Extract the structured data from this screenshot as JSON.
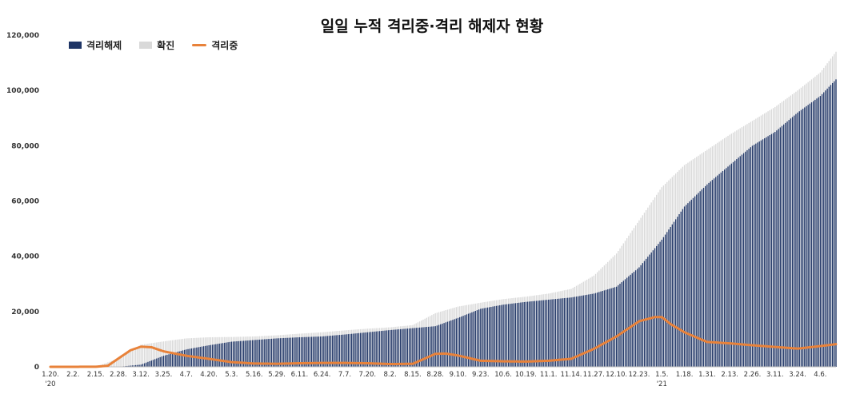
{
  "chart_data": {
    "type": "bar",
    "title": "일일 누적 격리중·격리 해제자 현황",
    "legend_position": "top-left",
    "grid": false,
    "ylim": [
      0,
      120000
    ],
    "yticks": [
      0,
      20000,
      40000,
      60000,
      80000,
      100000,
      120000
    ],
    "ytick_labels": [
      "0",
      "20,000",
      "40,000",
      "60,000",
      "80,000",
      "100,000",
      "120,000"
    ],
    "x_start_date": "2020-01-20",
    "x_end_date": "2021-04-15",
    "x_tick_labels": [
      "1.20.",
      "2.2.",
      "2.15.",
      "2.28.",
      "3.12.",
      "3.25.",
      "4.7.",
      "4.20.",
      "5.3.",
      "5.16.",
      "5.29.",
      "6.11.",
      "6.24.",
      "7.7.",
      "7.20.",
      "8.2.",
      "8.15.",
      "8.28.",
      "9.10.",
      "9.23.",
      "10.6.",
      "10.19.",
      "11.1.",
      "11.14.",
      "11.27.",
      "12.10.",
      "12.23.",
      "1.5.",
      "1.18.",
      "1.31.",
      "2.13.",
      "2.26.",
      "3.11.",
      "3.24.",
      "4.6."
    ],
    "x_year_labels": [
      {
        "at": "1.20.",
        "label": "'20"
      },
      {
        "at": "1.5.",
        "label": "'21"
      }
    ],
    "colors": {
      "released": "#1F3566",
      "confirmed": "#D9D9D9",
      "isolated": "#E8823A"
    },
    "series": [
      {
        "name": "격리해제",
        "kind": "bar",
        "points": [
          [
            "2020-01-20",
            0
          ],
          [
            "2020-02-28",
            0
          ],
          [
            "2020-03-12",
            800
          ],
          [
            "2020-03-25",
            4000
          ],
          [
            "2020-04-07",
            6300
          ],
          [
            "2020-04-20",
            7800
          ],
          [
            "2020-05-03",
            9100
          ],
          [
            "2020-05-16",
            9700
          ],
          [
            "2020-05-29",
            10300
          ],
          [
            "2020-06-11",
            10700
          ],
          [
            "2020-06-24",
            11000
          ],
          [
            "2020-07-07",
            11700
          ],
          [
            "2020-07-20",
            12500
          ],
          [
            "2020-08-02",
            13300
          ],
          [
            "2020-08-15",
            14000
          ],
          [
            "2020-08-28",
            14700
          ],
          [
            "2020-09-10",
            17700
          ],
          [
            "2020-09-23",
            21000
          ],
          [
            "2020-10-06",
            22500
          ],
          [
            "2020-10-19",
            23500
          ],
          [
            "2020-11-01",
            24300
          ],
          [
            "2020-11-14",
            25100
          ],
          [
            "2020-11-27",
            26500
          ],
          [
            "2020-12-10",
            29000
          ],
          [
            "2020-12-23",
            36000
          ],
          [
            "2021-01-05",
            46000
          ],
          [
            "2021-01-18",
            58000
          ],
          [
            "2021-01-31",
            66000
          ],
          [
            "2021-02-13",
            73000
          ],
          [
            "2021-02-26",
            80000
          ],
          [
            "2021-03-11",
            85000
          ],
          [
            "2021-03-24",
            92000
          ],
          [
            "2021-04-06",
            98000
          ],
          [
            "2021-04-15",
            104000
          ]
        ]
      },
      {
        "name": "확진",
        "kind": "bar",
        "points": [
          [
            "2020-01-20",
            0
          ],
          [
            "2020-02-15",
            30
          ],
          [
            "2020-02-28",
            3000
          ],
          [
            "2020-03-12",
            8000
          ],
          [
            "2020-03-25",
            9200
          ],
          [
            "2020-04-07",
            10300
          ],
          [
            "2020-04-20",
            10700
          ],
          [
            "2020-05-03",
            10800
          ],
          [
            "2020-05-16",
            11000
          ],
          [
            "2020-05-29",
            11400
          ],
          [
            "2020-06-11",
            12000
          ],
          [
            "2020-06-24",
            12500
          ],
          [
            "2020-07-07",
            13200
          ],
          [
            "2020-07-20",
            13800
          ],
          [
            "2020-08-02",
            14300
          ],
          [
            "2020-08-15",
            15100
          ],
          [
            "2020-08-28",
            19400
          ],
          [
            "2020-09-10",
            21800
          ],
          [
            "2020-09-23",
            23200
          ],
          [
            "2020-10-06",
            24500
          ],
          [
            "2020-10-19",
            25400
          ],
          [
            "2020-11-01",
            26500
          ],
          [
            "2020-11-14",
            28200
          ],
          [
            "2020-11-27",
            33000
          ],
          [
            "2020-12-10",
            41000
          ],
          [
            "2020-12-23",
            53000
          ],
          [
            "2021-01-05",
            65000
          ],
          [
            "2021-01-18",
            73000
          ],
          [
            "2021-01-31",
            78500
          ],
          [
            "2021-02-13",
            84000
          ],
          [
            "2021-02-26",
            89000
          ],
          [
            "2021-03-11",
            94000
          ],
          [
            "2021-03-24",
            100000
          ],
          [
            "2021-04-06",
            106500
          ],
          [
            "2021-04-15",
            114000
          ]
        ]
      },
      {
        "name": "격리중",
        "kind": "line",
        "points": [
          [
            "2020-01-20",
            0
          ],
          [
            "2020-02-15",
            30
          ],
          [
            "2020-02-22",
            400
          ],
          [
            "2020-02-28",
            3000
          ],
          [
            "2020-03-06",
            6000
          ],
          [
            "2020-03-12",
            7300
          ],
          [
            "2020-03-18",
            7100
          ],
          [
            "2020-03-25",
            5600
          ],
          [
            "2020-04-07",
            4000
          ],
          [
            "2020-04-20",
            2900
          ],
          [
            "2020-05-03",
            1700
          ],
          [
            "2020-05-16",
            1200
          ],
          [
            "2020-05-29",
            1100
          ],
          [
            "2020-06-11",
            1300
          ],
          [
            "2020-06-24",
            1400
          ],
          [
            "2020-07-07",
            1400
          ],
          [
            "2020-07-20",
            1300
          ],
          [
            "2020-08-02",
            1000
          ],
          [
            "2020-08-15",
            1100
          ],
          [
            "2020-08-22",
            3000
          ],
          [
            "2020-08-28",
            4700
          ],
          [
            "2020-09-03",
            4800
          ],
          [
            "2020-09-10",
            4100
          ],
          [
            "2020-09-23",
            2200
          ],
          [
            "2020-10-06",
            2000
          ],
          [
            "2020-10-19",
            1900
          ],
          [
            "2020-11-01",
            2200
          ],
          [
            "2020-11-14",
            2900
          ],
          [
            "2020-11-27",
            6500
          ],
          [
            "2020-12-10",
            11000
          ],
          [
            "2020-12-23",
            16500
          ],
          [
            "2021-01-01",
            18000
          ],
          [
            "2021-01-05",
            18000
          ],
          [
            "2021-01-10",
            15500
          ],
          [
            "2021-01-18",
            12500
          ],
          [
            "2021-01-31",
            9000
          ],
          [
            "2021-02-13",
            8500
          ],
          [
            "2021-02-26",
            7800
          ],
          [
            "2021-03-11",
            7200
          ],
          [
            "2021-03-24",
            6600
          ],
          [
            "2021-04-06",
            7500
          ],
          [
            "2021-04-15",
            8200
          ]
        ]
      }
    ]
  }
}
